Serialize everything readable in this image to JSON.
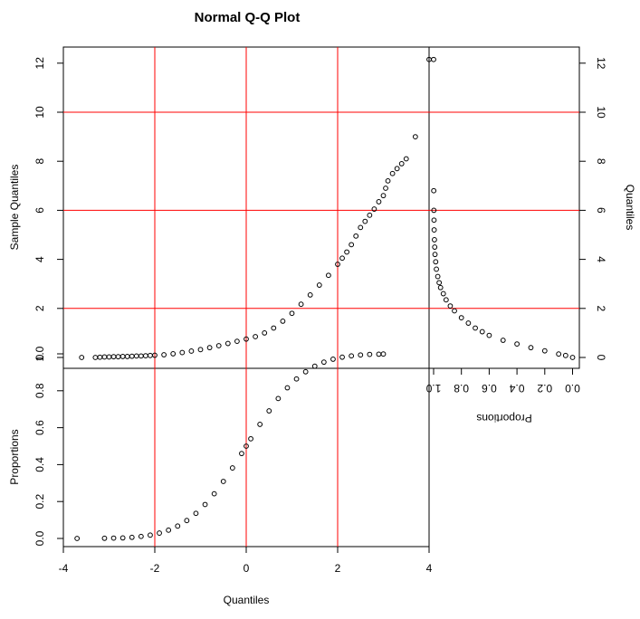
{
  "chart_data": {
    "type": "scatter",
    "title": "Normal Q-Q Plot",
    "panels": [
      {
        "name": "qq-panel",
        "xlabel": "",
        "ylabel": "Sample Quantiles",
        "xlim": [
          -4,
          4
        ],
        "ylim": [
          0,
          12.5
        ],
        "x_ticks": [],
        "y_ticks": [
          "0",
          "2",
          "4",
          "6",
          "8",
          "10",
          "12"
        ],
        "reference_lines": {
          "x": [
            -2,
            0,
            2
          ],
          "y": [
            2,
            6,
            10
          ]
        },
        "reference_line_color": "#ff0000",
        "points": [
          [
            -3.6,
            0.0
          ],
          [
            -3.3,
            0.0
          ],
          [
            -3.2,
            0.01
          ],
          [
            -3.1,
            0.02
          ],
          [
            -3.0,
            0.02
          ],
          [
            -2.9,
            0.03
          ],
          [
            -2.8,
            0.03
          ],
          [
            -2.7,
            0.04
          ],
          [
            -2.6,
            0.04
          ],
          [
            -2.5,
            0.05
          ],
          [
            -2.4,
            0.06
          ],
          [
            -2.3,
            0.06
          ],
          [
            -2.2,
            0.07
          ],
          [
            -2.1,
            0.08
          ],
          [
            -2.0,
            0.09
          ],
          [
            -1.8,
            0.11
          ],
          [
            -1.6,
            0.15
          ],
          [
            -1.4,
            0.2
          ],
          [
            -1.2,
            0.26
          ],
          [
            -1.0,
            0.32
          ],
          [
            -0.8,
            0.4
          ],
          [
            -0.6,
            0.48
          ],
          [
            -0.4,
            0.57
          ],
          [
            -0.2,
            0.66
          ],
          [
            0.0,
            0.75
          ],
          [
            0.2,
            0.85
          ],
          [
            0.4,
            1.0
          ],
          [
            0.6,
            1.2
          ],
          [
            0.8,
            1.48
          ],
          [
            1.0,
            1.8
          ],
          [
            1.2,
            2.17
          ],
          [
            1.4,
            2.55
          ],
          [
            1.6,
            2.95
          ],
          [
            1.8,
            3.35
          ],
          [
            2.0,
            3.8
          ],
          [
            2.1,
            4.05
          ],
          [
            2.2,
            4.3
          ],
          [
            2.3,
            4.6
          ],
          [
            2.4,
            4.95
          ],
          [
            2.5,
            5.3
          ],
          [
            2.6,
            5.55
          ],
          [
            2.7,
            5.8
          ],
          [
            2.8,
            6.05
          ],
          [
            2.9,
            6.35
          ],
          [
            3.0,
            6.6
          ],
          [
            3.05,
            6.9
          ],
          [
            3.1,
            7.2
          ],
          [
            3.2,
            7.5
          ],
          [
            3.3,
            7.7
          ],
          [
            3.4,
            7.9
          ],
          [
            3.5,
            8.1
          ],
          [
            3.7,
            9.0
          ],
          [
            4.0,
            12.15
          ]
        ]
      },
      {
        "name": "cdf-panel",
        "xlabel": "Quantiles",
        "ylabel": "Proportions",
        "xlim": [
          -4,
          4
        ],
        "ylim": [
          0,
          1.05
        ],
        "x_ticks": [
          "-4",
          "-2",
          "0",
          "2",
          "4"
        ],
        "y_ticks": [
          "0.0",
          "0.2",
          "0.4",
          "0.6",
          "0.8",
          "1.0"
        ],
        "reference_lines": {
          "x": [
            -2,
            0,
            2
          ],
          "y": []
        },
        "reference_line_color": "#ff0000",
        "points": [
          [
            -3.7,
            0.0
          ],
          [
            -3.1,
            0.001
          ],
          [
            -2.9,
            0.002
          ],
          [
            -2.7,
            0.003
          ],
          [
            -2.5,
            0.006
          ],
          [
            -2.3,
            0.011
          ],
          [
            -2.1,
            0.018
          ],
          [
            -1.9,
            0.029
          ],
          [
            -1.7,
            0.045
          ],
          [
            -1.5,
            0.067
          ],
          [
            -1.3,
            0.097
          ],
          [
            -1.1,
            0.136
          ],
          [
            -0.9,
            0.184
          ],
          [
            -0.7,
            0.242
          ],
          [
            -0.5,
            0.309
          ],
          [
            -0.3,
            0.382
          ],
          [
            -0.1,
            0.46
          ],
          [
            0.0,
            0.5
          ],
          [
            0.1,
            0.54
          ],
          [
            0.3,
            0.618
          ],
          [
            0.5,
            0.691
          ],
          [
            0.7,
            0.758
          ],
          [
            0.9,
            0.816
          ],
          [
            1.1,
            0.864
          ],
          [
            1.3,
            0.903
          ],
          [
            1.5,
            0.933
          ],
          [
            1.7,
            0.955
          ],
          [
            1.9,
            0.971
          ],
          [
            2.1,
            0.982
          ],
          [
            2.3,
            0.989
          ],
          [
            2.5,
            0.994
          ],
          [
            2.7,
            0.997
          ],
          [
            2.9,
            0.998
          ],
          [
            3.0,
            0.999
          ]
        ]
      },
      {
        "name": "rotated-panel",
        "xlabel": "Proportions",
        "ylabel": "Quantiles",
        "xlim": [
          1.0,
          0.0
        ],
        "ylim": [
          0,
          12.5
        ],
        "x_ticks": [
          "1.0",
          "0.8",
          "0.6",
          "0.4",
          "0.2",
          "0.0"
        ],
        "y_ticks": [
          "0",
          "2",
          "4",
          "6",
          "8",
          "10",
          "12"
        ],
        "reference_lines": {
          "x": [],
          "y": [
            2,
            6,
            10
          ]
        },
        "reference_line_color": "#ff0000",
        "points": [
          [
            1.0,
            12.15
          ],
          [
            0.999,
            6.8
          ],
          [
            0.998,
            6.0
          ],
          [
            0.997,
            5.6
          ],
          [
            0.996,
            5.2
          ],
          [
            0.994,
            4.8
          ],
          [
            0.992,
            4.5
          ],
          [
            0.99,
            4.2
          ],
          [
            0.985,
            3.9
          ],
          [
            0.98,
            3.6
          ],
          [
            0.97,
            3.3
          ],
          [
            0.96,
            3.05
          ],
          [
            0.95,
            2.85
          ],
          [
            0.93,
            2.6
          ],
          [
            0.91,
            2.35
          ],
          [
            0.88,
            2.1
          ],
          [
            0.85,
            1.9
          ],
          [
            0.8,
            1.62
          ],
          [
            0.75,
            1.4
          ],
          [
            0.7,
            1.2
          ],
          [
            0.65,
            1.05
          ],
          [
            0.6,
            0.9
          ],
          [
            0.5,
            0.7
          ],
          [
            0.4,
            0.55
          ],
          [
            0.3,
            0.4
          ],
          [
            0.2,
            0.27
          ],
          [
            0.1,
            0.14
          ],
          [
            0.05,
            0.08
          ],
          [
            0.0,
            0.0
          ]
        ]
      }
    ]
  }
}
